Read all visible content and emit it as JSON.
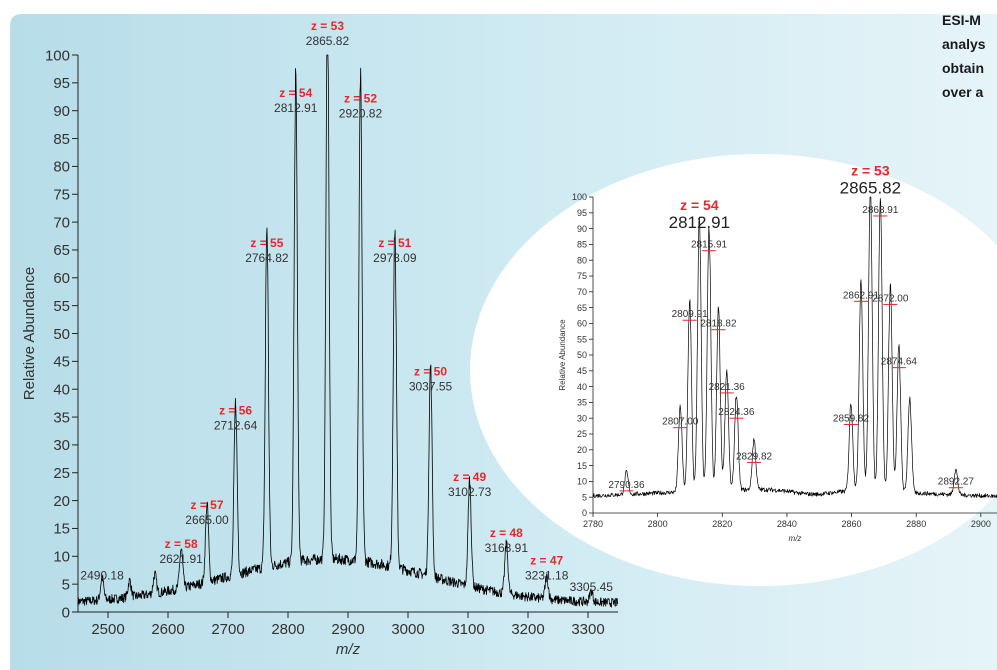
{
  "caption": [
    "ESI-M",
    "analys",
    "obtain",
    "over a"
  ],
  "colors": {
    "background": "#c6e6f0",
    "ellipse": "#ffffff",
    "trace": "#000000",
    "charge_label": "#e8262a",
    "peak_marker": "#e8262a",
    "text": "#333333"
  },
  "chart_data": [
    {
      "type": "line",
      "title": "",
      "xlabel": "m/z",
      "ylabel": "Relative Abundance",
      "xlim": [
        2450,
        3350
      ],
      "ylim": [
        0,
        100
      ],
      "xticks": [
        2500,
        2600,
        2700,
        2800,
        2900,
        3000,
        3100,
        3200,
        3300
      ],
      "yticks": [
        0,
        5,
        10,
        15,
        20,
        25,
        30,
        35,
        40,
        45,
        50,
        55,
        60,
        65,
        70,
        75,
        80,
        85,
        90,
        95,
        100
      ],
      "peaks": [
        {
          "mz": 2490.18,
          "height": 4,
          "label": "2490.18",
          "charge": ""
        },
        {
          "mz": 2536,
          "height": 3,
          "label": "",
          "charge": ""
        },
        {
          "mz": 2578,
          "height": 3.5,
          "label": "",
          "charge": ""
        },
        {
          "mz": 2621.91,
          "height": 7,
          "label": "2621.91",
          "charge": "z = 58"
        },
        {
          "mz": 2665.0,
          "height": 14,
          "label": "2665.00",
          "charge": "z = 57"
        },
        {
          "mz": 2712.64,
          "height": 31,
          "label": "2712.64",
          "charge": "z = 56"
        },
        {
          "mz": 2764.82,
          "height": 61,
          "label": "2764.82",
          "charge": "z = 55"
        },
        {
          "mz": 2812.91,
          "height": 88,
          "label": "2812.91",
          "charge": "z = 54"
        },
        {
          "mz": 2865.82,
          "height": 100,
          "label": "2865.82",
          "charge": "z = 53"
        },
        {
          "mz": 2920.82,
          "height": 87,
          "label": "2920.82",
          "charge": "z = 52"
        },
        {
          "mz": 2978.09,
          "height": 61,
          "label": "2978.09",
          "charge": "z = 51"
        },
        {
          "mz": 3037.55,
          "height": 38,
          "label": "3037.55",
          "charge": "z = 50"
        },
        {
          "mz": 3102.73,
          "height": 19,
          "label": "3102.73",
          "charge": "z = 49"
        },
        {
          "mz": 3163.91,
          "height": 9,
          "label": "3163.91",
          "charge": "z = 48"
        },
        {
          "mz": 3231.18,
          "height": 4,
          "label": "3231.18",
          "charge": "z = 47"
        },
        {
          "mz": 3305.45,
          "height": 2,
          "label": "3305.45",
          "charge": ""
        }
      ]
    },
    {
      "type": "line",
      "title": "",
      "xlabel": "m/z",
      "ylabel": "Relative Abundance",
      "xlim": [
        2780,
        2905
      ],
      "ylim": [
        0,
        100
      ],
      "xticks": [
        2780,
        2800,
        2820,
        2840,
        2860,
        2880,
        2900
      ],
      "yticks": [
        0,
        5,
        10,
        15,
        20,
        25,
        30,
        35,
        40,
        45,
        50,
        55,
        60,
        65,
        70,
        75,
        80,
        85,
        90,
        95,
        100
      ],
      "groups": [
        {
          "charge": "z = 54",
          "label": "2812.91"
        },
        {
          "charge": "z = 53",
          "label": "2865.82"
        }
      ],
      "peaks": [
        {
          "mz": 2807.0,
          "height": 27,
          "label": "2807.00"
        },
        {
          "mz": 2809.91,
          "height": 61,
          "label": "2809.91"
        },
        {
          "mz": 2812.91,
          "height": 87,
          "label": ""
        },
        {
          "mz": 2815.91,
          "height": 83,
          "label": "2815.91"
        },
        {
          "mz": 2818.82,
          "height": 58,
          "label": "2818.82"
        },
        {
          "mz": 2821.36,
          "height": 38,
          "label": "2821.36"
        },
        {
          "mz": 2824.36,
          "height": 30,
          "label": "2824.36"
        },
        {
          "mz": 2829.82,
          "height": 16,
          "label": "2829.82"
        },
        {
          "mz": 2859.82,
          "height": 28,
          "label": "2859.82"
        },
        {
          "mz": 2862.91,
          "height": 67,
          "label": "2862.91"
        },
        {
          "mz": 2865.82,
          "height": 98,
          "label": ""
        },
        {
          "mz": 2868.91,
          "height": 94,
          "label": "2868.91"
        },
        {
          "mz": 2872.0,
          "height": 66,
          "label": "2872.00"
        },
        {
          "mz": 2874.64,
          "height": 46,
          "label": "2874.64"
        },
        {
          "mz": 2878,
          "height": 30,
          "label": ""
        }
      ],
      "baseline_labels": [
        {
          "mz": 2790.36,
          "height": 7,
          "label": "2790.36"
        },
        {
          "mz": 2892.27,
          "height": 8,
          "label": "2892.27"
        }
      ]
    }
  ]
}
